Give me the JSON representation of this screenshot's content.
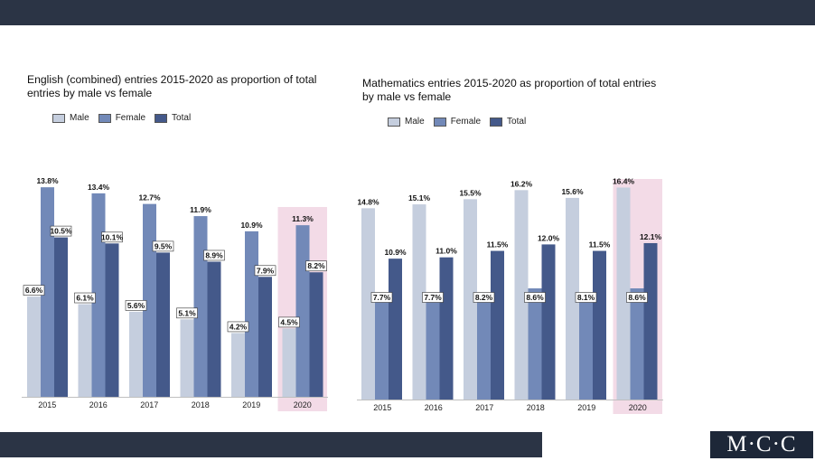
{
  "colors": {
    "male": "#c5cede",
    "female": "#7289b8",
    "total": "#44598a",
    "highlight": "#f3dbe7",
    "bar_dark": "#2b3445"
  },
  "logo": {
    "text": "M·C·C"
  },
  "legend": {
    "male": "Male",
    "female": "Female",
    "total": "Total"
  },
  "chart_data": [
    {
      "type": "bar",
      "title": "English (combined) entries 2015-2020 as proportion of total entries by male vs female",
      "categories": [
        "2015",
        "2016",
        "2017",
        "2018",
        "2019",
        "2020"
      ],
      "series": [
        {
          "name": "Male",
          "values": [
            6.6,
            6.1,
            5.6,
            5.1,
            4.2,
            4.5
          ],
          "labels": [
            "6.6%",
            "6.1%",
            "5.6%",
            "5.1%",
            "4.2%",
            "4.5%"
          ]
        },
        {
          "name": "Female",
          "values": [
            13.8,
            13.4,
            12.7,
            11.9,
            10.9,
            11.3
          ],
          "labels": [
            "13.8%",
            "13.4%",
            "12.7%",
            "11.9%",
            "10.9%",
            "11.3%"
          ]
        },
        {
          "name": "Total",
          "values": [
            10.5,
            10.1,
            9.5,
            8.9,
            7.9,
            8.2
          ],
          "labels": [
            "10.5%",
            "10.1%",
            "9.5%",
            "8.9%",
            "7.9%",
            "8.2%"
          ]
        }
      ],
      "highlight_category": "2020",
      "grid": false,
      "legend_position": "top-left"
    },
    {
      "type": "bar",
      "title": "Mathematics entries 2015-2020 as proportion of total entries by male vs female",
      "categories": [
        "2015",
        "2016",
        "2017",
        "2018",
        "2019",
        "2020"
      ],
      "series": [
        {
          "name": "Male",
          "values": [
            14.8,
            15.1,
            15.5,
            16.2,
            15.6,
            16.4
          ],
          "labels": [
            "14.8%",
            "15.1%",
            "15.5%",
            "16.2%",
            "15.6%",
            "16.4%"
          ]
        },
        {
          "name": "Female",
          "values": [
            7.7,
            7.7,
            8.2,
            8.6,
            8.1,
            8.6
          ],
          "labels": [
            "7.7%",
            "7.7%",
            "8.2%",
            "8.6%",
            "8.1%",
            "8.6%"
          ]
        },
        {
          "name": "Total",
          "values": [
            10.9,
            11.0,
            11.5,
            12.0,
            11.5,
            12.1
          ],
          "labels": [
            "10.9%",
            "11.0%",
            "11.5%",
            "12.0%",
            "11.5%",
            "12.1%"
          ]
        }
      ],
      "highlight_category": "2020",
      "grid": false,
      "legend_position": "top-left"
    }
  ]
}
